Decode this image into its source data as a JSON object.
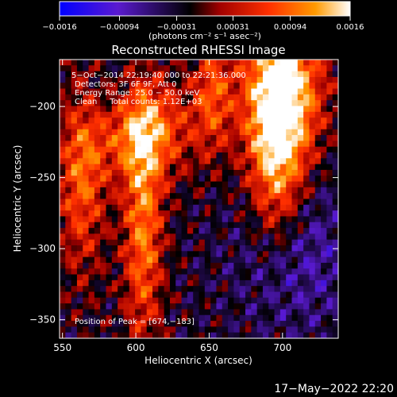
{
  "chart_data": {
    "type": "heatmap",
    "title": "Reconstructed RHESSI Image",
    "xlabel": "Heliocentric X (arcsec)",
    "ylabel": "Heliocentric Y (arcsec)",
    "xlim": [
      548,
      738
    ],
    "ylim": [
      -363,
      -167
    ],
    "x_ticks": [
      550,
      600,
      650,
      700
    ],
    "y_ticks": [
      -200,
      -250,
      -300,
      -350
    ],
    "x_tick_labels": [
      "550",
      "600",
      "650",
      "700"
    ],
    "y_tick_labels": [
      "−200",
      "−250",
      "−300",
      "−350"
    ],
    "colorbar": {
      "min": -0.0016,
      "max": 0.0016,
      "ticks": [
        -0.0016,
        -0.00094,
        -0.00031,
        0.00031,
        0.00094,
        0.0016
      ],
      "tick_labels": [
        "−0.0016",
        "−0.00094",
        "−0.00031",
        "0.00031",
        "0.00094",
        "0.0016"
      ],
      "units_label": "(photons cm⁻² s⁻¹ asec⁻²)",
      "colors": [
        "#0000ff",
        "#5a1ad0",
        "#000000",
        "#a00000",
        "#ff3000",
        "#ff9a00",
        "#ffffff"
      ]
    },
    "annotations": {
      "time": "5−Oct−2014 22:19:40.000 to 22:21:36.000",
      "detectors": "Detectors: 3F 6F 9F, Att 0",
      "energy": "Energy Range: 25.0 − 50.0 keV",
      "clean": "Clean     Total counts: 1.12E+03",
      "peak": "Position of Peak = [674,−183]"
    },
    "peak_position": [
      674,
      -183
    ],
    "grid": false
  },
  "footer": {
    "timestamp": "17−May−2022 22:20"
  }
}
